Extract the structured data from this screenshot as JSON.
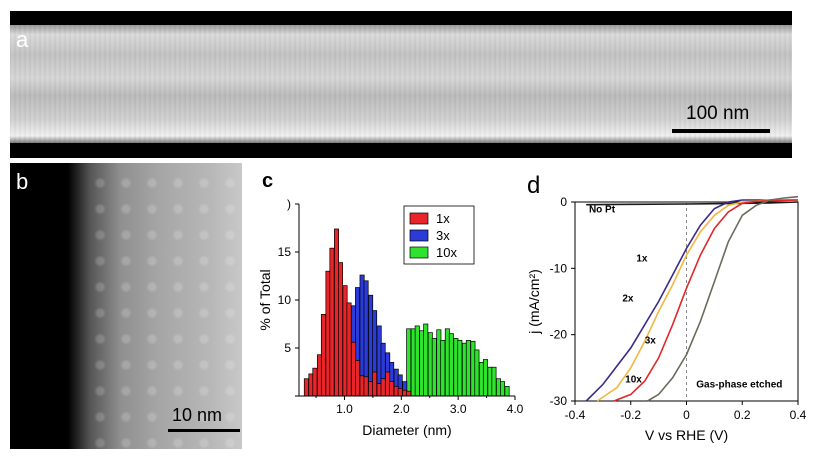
{
  "panel_a": {
    "letter": "a",
    "scale_bar": "100 nm"
  },
  "panel_b": {
    "letter": "b",
    "scale_bar": "10 nm"
  },
  "panel_c": {
    "letter": "c"
  },
  "panel_d": {
    "letter": "d"
  },
  "colors": {
    "red": "#e8262a",
    "blue": "#2a3bd8",
    "green": "#2ee22e",
    "purple": "#3a2a8a",
    "orange": "#f2b642",
    "crimson": "#e0282c",
    "gray": "#6b6b5a"
  },
  "chart_data": [
    {
      "type": "bar",
      "panel": "c",
      "xlabel": "Diameter (nm)",
      "ylabel": "% of Total",
      "xlim": [
        0.2,
        4.0
      ],
      "ylim": [
        0,
        20
      ],
      "xticks": [
        "1.0",
        "2.0",
        "3.0",
        "4.0"
      ],
      "yticks": [
        "0",
        "5",
        "10",
        "15",
        ")"
      ],
      "legend_position": "top-right",
      "bin_width": 0.075,
      "series": [
        {
          "name": "1x",
          "color": "#e8262a",
          "x": [
            0.33,
            0.41,
            0.48,
            0.56,
            0.63,
            0.71,
            0.78,
            0.86,
            0.93,
            1.01,
            1.08,
            1.16,
            1.23,
            1.31,
            1.38,
            1.46,
            1.53,
            1.61,
            1.68,
            1.76,
            1.83,
            1.91,
            1.98,
            2.06,
            2.13
          ],
          "values": [
            1.8,
            2.3,
            2.9,
            4.3,
            8.5,
            13.0,
            15.4,
            17.4,
            13.9,
            11.5,
            9.7,
            5.6,
            3.7,
            2.1,
            2.0,
            1.5,
            2.5,
            1.3,
            1.8,
            2.5,
            1.5,
            1.0,
            0.8,
            0.6,
            0.5
          ]
        },
        {
          "name": "3x",
          "color": "#2a3bd8",
          "x": [
            1.16,
            1.23,
            1.31,
            1.38,
            1.46,
            1.53,
            1.61,
            1.68,
            1.76,
            1.83,
            1.91,
            1.98,
            2.06
          ],
          "values": [
            9.4,
            11.3,
            12.6,
            12.0,
            10.5,
            8.9,
            7.3,
            5.5,
            4.5,
            3.5,
            2.8,
            2.2,
            1.5
          ]
        },
        {
          "name": "10x",
          "color": "#2ee22e",
          "x": [
            2.13,
            2.21,
            2.28,
            2.36,
            2.43,
            2.51,
            2.58,
            2.66,
            2.73,
            2.81,
            2.88,
            2.96,
            3.03,
            3.11,
            3.18,
            3.26,
            3.33,
            3.41,
            3.48,
            3.56,
            3.63,
            3.71,
            3.78,
            3.86
          ],
          "values": [
            7.0,
            7.0,
            7.3,
            6.8,
            7.5,
            6.6,
            6.0,
            6.9,
            5.8,
            7.0,
            6.5,
            6.0,
            5.8,
            5.5,
            5.8,
            5.7,
            4.8,
            3.5,
            3.8,
            3.0,
            3.0,
            1.8,
            1.5,
            1.0
          ]
        }
      ]
    },
    {
      "type": "line",
      "panel": "d",
      "xlabel": "V vs RHE (V)",
      "ylabel": "j (mA/cm²)",
      "xlim": [
        -0.4,
        0.4
      ],
      "ylim": [
        -30,
        0
      ],
      "xticks": [
        "-0.4",
        "-0.2",
        "0",
        "0.2",
        "0.4"
      ],
      "yticks": [
        "0",
        "-10",
        "-20",
        "-30"
      ],
      "annotations": [
        "No Pt",
        "1x",
        "2x",
        "3x",
        "10x",
        "Gas-phase etched"
      ],
      "series": [
        {
          "name": "No Pt",
          "color": "#1a1a1a",
          "x": [
            -0.36,
            -0.2,
            0,
            0.1,
            0.2,
            0.3,
            0.4
          ],
          "values": [
            -0.4,
            -0.35,
            -0.3,
            -0.25,
            -0.2,
            -0.15,
            0
          ]
        },
        {
          "name": "1x",
          "color": "#3a2a8a",
          "x": [
            -0.36,
            -0.3,
            -0.2,
            -0.1,
            -0.05,
            0,
            0.05,
            0.1,
            0.15,
            0.2,
            0.3,
            0.4
          ],
          "values": [
            -30,
            -27.5,
            -22,
            -15,
            -11,
            -7,
            -3.5,
            -1,
            0,
            0.3,
            0.3,
            0.3
          ]
        },
        {
          "name": "2x",
          "color": "#f2b642",
          "x": [
            -0.32,
            -0.25,
            -0.2,
            -0.15,
            -0.1,
            -0.05,
            0,
            0.05,
            0.1,
            0.15,
            0.2,
            0.3,
            0.4
          ],
          "values": [
            -30,
            -28,
            -25,
            -21,
            -16.5,
            -12.5,
            -8,
            -4.5,
            -2,
            -0.5,
            0,
            0.3,
            0.3
          ]
        },
        {
          "name": "3x",
          "color": "#e0282c",
          "x": [
            -0.26,
            -0.2,
            -0.15,
            -0.1,
            -0.05,
            0,
            0.05,
            0.1,
            0.15,
            0.2,
            0.25,
            0.3,
            0.4
          ],
          "values": [
            -30,
            -29,
            -27,
            -23.5,
            -18.5,
            -13,
            -8,
            -4,
            -1.5,
            -0.2,
            0.1,
            0.2,
            0.3
          ]
        },
        {
          "name": "10x",
          "color": "#6b6b5a",
          "x": [
            -0.14,
            -0.1,
            -0.05,
            0,
            0.05,
            0.1,
            0.15,
            0.2,
            0.25,
            0.3,
            0.35,
            0.4
          ],
          "values": [
            -30,
            -29,
            -26.5,
            -23,
            -18,
            -12,
            -6,
            -2,
            -0.5,
            0.3,
            0.6,
            0.8
          ]
        }
      ]
    }
  ]
}
